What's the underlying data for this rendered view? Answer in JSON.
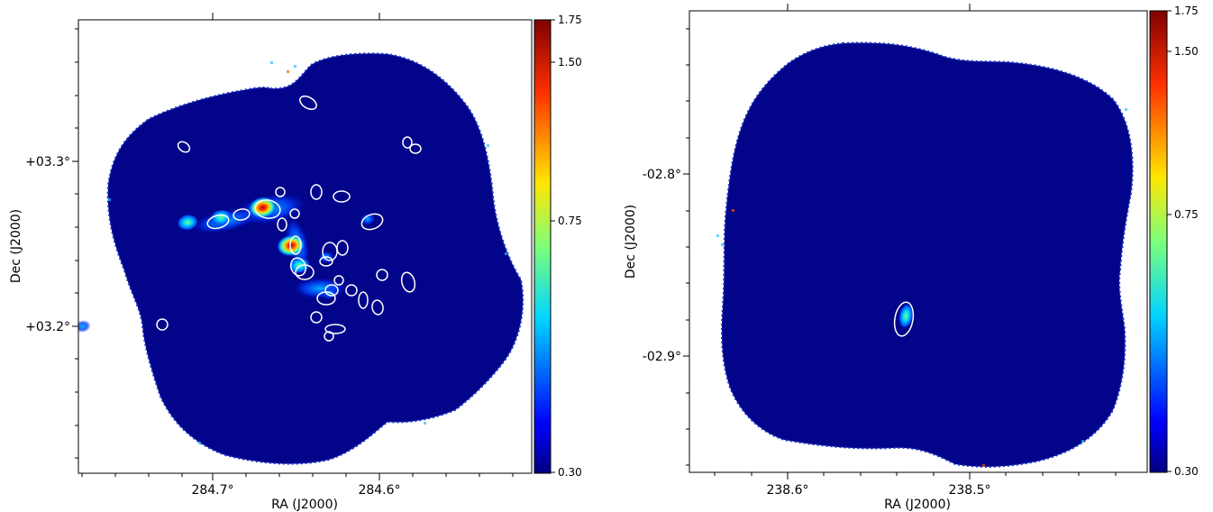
{
  "chart_data": [
    {
      "type": "heatmap",
      "xlabel": "RA (J2000)",
      "ylabel": "Dec (J2000)",
      "x_ticks": [
        "284.7°",
        "284.6°"
      ],
      "y_ticks": [
        "+03.3°",
        "+03.2°"
      ],
      "colorbar": {
        "colormap": "jet",
        "range": [
          0.3,
          1.75
        ],
        "ticks": [
          "1.75",
          "1.50",
          "0.75",
          "0.30"
        ]
      },
      "grid": false,
      "sources": [
        {
          "ra": 284.715,
          "dec": 3.263,
          "peak": 0.9
        },
        {
          "ra": 284.695,
          "dec": 3.266,
          "peak": 1.1
        },
        {
          "ra": 284.67,
          "dec": 3.272,
          "peak": 1.75
        },
        {
          "ra": 284.653,
          "dec": 3.249,
          "peak": 1.55
        },
        {
          "ra": 284.648,
          "dec": 3.237,
          "peak": 1.0
        },
        {
          "ra": 284.632,
          "dec": 3.242,
          "peak": 0.8
        },
        {
          "ra": 284.607,
          "dec": 3.265,
          "peak": 0.75
        },
        {
          "ra": 284.63,
          "dec": 3.22,
          "peak": 0.7
        },
        {
          "ra": 284.778,
          "dec": 3.2,
          "peak": 0.6
        }
      ]
    },
    {
      "type": "heatmap",
      "xlabel": "RA (J2000)",
      "ylabel": "Dec (J2000)",
      "x_ticks": [
        "238.6°",
        "238.5°"
      ],
      "y_ticks": [
        "-02.8°",
        "-02.9°"
      ],
      "colorbar": {
        "colormap": "jet",
        "range": [
          0.3,
          1.75
        ],
        "ticks": [
          "1.75",
          "1.50",
          "0.75",
          "0.30"
        ]
      },
      "grid": false,
      "sources": [
        {
          "ra": 238.535,
          "dec": -2.878,
          "peak": 0.65
        }
      ]
    }
  ]
}
